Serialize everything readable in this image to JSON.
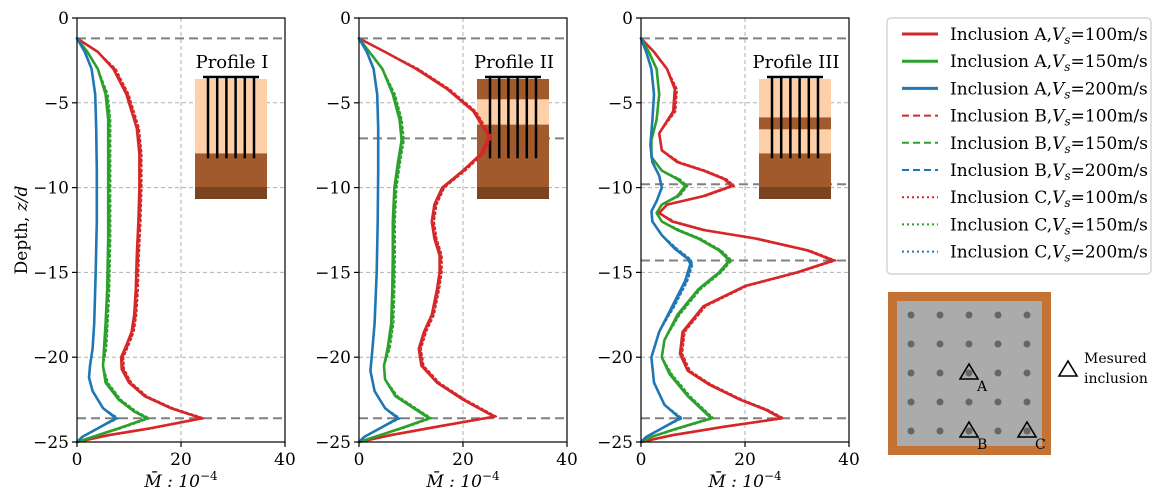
{
  "chart_data": {
    "type": "line",
    "ylabel": "Depth, z/d",
    "xlabel": "M̄ : 10",
    "xlabel_exp": "−4",
    "xlim": [
      0,
      40
    ],
    "ylim": [
      -25,
      0
    ],
    "xticks": [
      "0",
      "20",
      "40"
    ],
    "yticks": [
      "0",
      "−5",
      "−10",
      "−15",
      "−20",
      "−25"
    ],
    "grid": true,
    "legend_position": "right",
    "colors": {
      "Vs100": "#d62728",
      "Vs150": "#2ca02c",
      "Vs200": "#1f77b4"
    },
    "panels": [
      {
        "title": "Profile I",
        "layer_lines": [
          -1.2,
          -23.6
        ],
        "series": [
          {
            "name": "Inclusion A, Vs=100m/s",
            "style": "solid",
            "key": "Vs100",
            "x": [
              0,
              4,
              7,
              9.5,
              11.5,
              12,
              12,
              11.8,
              11.5,
              11.3,
              11,
              10.5,
              9.5,
              8.5,
              8.6,
              10,
              13,
              18,
              24,
              14,
              6,
              0
            ],
            "y": [
              -1.2,
              -2,
              -3,
              -4.5,
              -6.5,
              -8,
              -10,
              -12,
              -14,
              -16,
              -17.5,
              -18.5,
              -19.3,
              -20,
              -20.7,
              -21.5,
              -22.3,
              -23,
              -23.6,
              -24.2,
              -24.6,
              -25
            ]
          },
          {
            "name": "Inclusion A, Vs=150m/s",
            "style": "solid",
            "key": "Vs150",
            "x": [
              0,
              2,
              4,
              5.5,
              6,
              6,
              6,
              6,
              5.8,
              5.5,
              5.2,
              5,
              5.5,
              8,
              11,
              13.5,
              8,
              3,
              0
            ],
            "y": [
              -1.2,
              -2,
              -3,
              -4.5,
              -6,
              -8,
              -10,
              -13,
              -16,
              -18,
              -19.5,
              -20.5,
              -21.5,
              -22.5,
              -23.2,
              -23.6,
              -24.2,
              -24.7,
              -25
            ]
          },
          {
            "name": "Inclusion A, Vs=200m/s",
            "style": "solid",
            "key": "Vs200",
            "x": [
              0,
              1.5,
              2.8,
              3.5,
              3.7,
              3.8,
              3.8,
              3.6,
              3.3,
              3,
              2.5,
              2.3,
              3,
              5,
              7.5,
              4,
              1,
              0
            ],
            "y": [
              -1.2,
              -2,
              -3,
              -4.5,
              -6.5,
              -9,
              -12,
              -15,
              -18,
              -19.5,
              -20.5,
              -21.2,
              -22,
              -23,
              -23.6,
              -24.2,
              -24.7,
              -25
            ]
          }
        ]
      },
      {
        "title": "Profile II",
        "layer_lines": [
          -1.2,
          -7.1,
          -23.6
        ],
        "series": [
          {
            "name": "Inclusion A, Vs=100m/s",
            "style": "solid",
            "key": "Vs100",
            "x": [
              0,
              5,
              11,
              17,
              22,
              25,
              23.5,
              20,
              16,
              14.5,
              14,
              14.5,
              15.5,
              15.5,
              15,
              14,
              12.5,
              11.5,
              12,
              15,
              20,
              26,
              15,
              6,
              0
            ],
            "y": [
              -1.2,
              -2,
              -3,
              -4.2,
              -5.5,
              -7,
              -8,
              -9,
              -10,
              -11,
              -12,
              -13,
              -14,
              -15,
              -16,
              -17.5,
              -18.5,
              -19.5,
              -20.5,
              -21.5,
              -22.5,
              -23.5,
              -24.1,
              -24.6,
              -25
            ]
          },
          {
            "name": "Inclusion A, Vs=150m/s",
            "style": "solid",
            "key": "Vs150",
            "x": [
              0,
              2,
              4.5,
              6.5,
              7.8,
              8.2,
              7.5,
              6.8,
              6.5,
              6.5,
              6.4,
              6.2,
              5.5,
              4.8,
              5,
              7,
              10.5,
              13.5,
              8,
              3,
              0
            ],
            "y": [
              -1.2,
              -2,
              -3,
              -4.5,
              -6,
              -7.2,
              -8.5,
              -10,
              -12,
              -14,
              -16,
              -18,
              -19.5,
              -20.5,
              -21.3,
              -22.3,
              -23,
              -23.6,
              -24.2,
              -24.7,
              -25
            ]
          },
          {
            "name": "Inclusion A, Vs=200m/s",
            "style": "solid",
            "key": "Vs200",
            "x": [
              0,
              1.5,
              2.8,
              3.5,
              3.7,
              3.7,
              3.6,
              3.4,
              3,
              2.5,
              2.2,
              3,
              5,
              7.5,
              4,
              1,
              0
            ],
            "y": [
              -1.2,
              -2,
              -3,
              -4.5,
              -6.5,
              -9,
              -12,
              -15,
              -18,
              -19.8,
              -20.8,
              -22,
              -23,
              -23.6,
              -24.2,
              -24.7,
              -25
            ]
          }
        ]
      },
      {
        "title": "Profile III",
        "layer_lines": [
          -1.2,
          -9.8,
          -14.3,
          -23.6
        ],
        "series": [
          {
            "name": "Inclusion A, Vs=100m/s",
            "style": "solid",
            "key": "Vs100",
            "x": [
              0,
              2.5,
              5,
              6.5,
              6.2,
              3.5,
              4,
              7,
              12,
              16,
              17.5,
              12,
              5,
              3.5,
              6,
              12,
              22,
              32,
              37,
              30,
              20,
              12,
              8,
              7.5,
              9,
              13,
              19,
              24,
              27,
              16,
              6,
              0
            ],
            "y": [
              -1.2,
              -2,
              -3,
              -4.2,
              -5.5,
              -6.8,
              -7.8,
              -8.5,
              -9,
              -9.5,
              -9.9,
              -10.5,
              -11,
              -11.5,
              -12,
              -12.5,
              -13,
              -13.7,
              -14.3,
              -15,
              -15.8,
              -17,
              -18.5,
              -19.8,
              -20.8,
              -21.6,
              -22.5,
              -23.1,
              -23.6,
              -24.1,
              -24.6,
              -25
            ]
          },
          {
            "name": "Inclusion A, Vs=150m/s",
            "style": "solid",
            "key": "Vs150",
            "x": [
              0,
              1.5,
              3,
              3.5,
              3,
              2,
              2,
              4,
              7,
              8.5,
              7,
              4,
              3,
              4,
              7,
              11,
              15,
              17,
              15,
              11,
              7,
              4.5,
              4,
              5.5,
              9,
              13.5,
              7,
              2,
              0
            ],
            "y": [
              -1.2,
              -2,
              -3,
              -4.5,
              -6,
              -7.2,
              -8.2,
              -9,
              -9.5,
              -9.9,
              -10.5,
              -11,
              -11.5,
              -12,
              -12.5,
              -13,
              -13.7,
              -14.3,
              -15,
              -16,
              -17.5,
              -19,
              -20,
              -21,
              -22.3,
              -23.6,
              -24.2,
              -24.7,
              -25
            ]
          },
          {
            "name": "Inclusion A, Vs=200m/s",
            "style": "solid",
            "key": "Vs200",
            "x": [
              0,
              1,
              2,
              2.5,
              2.2,
              1.8,
              2.2,
              3.5,
              4,
              3,
              2,
              2.2,
              4,
              6.5,
              9,
              9.5,
              8.5,
              6,
              3.5,
              2,
              2.5,
              4.5,
              7.5,
              4,
              1,
              0
            ],
            "y": [
              -1.2,
              -2,
              -3,
              -4.5,
              -6,
              -7.5,
              -8.5,
              -9.3,
              -10,
              -10.8,
              -11.4,
              -12,
              -12.8,
              -13.6,
              -14.2,
              -14.5,
              -15.5,
              -17,
              -18.5,
              -20,
              -21.5,
              -22.8,
              -23.6,
              -24.2,
              -24.7,
              -25
            ]
          }
        ]
      }
    ],
    "legend": [
      {
        "label": "Inclusion A,",
        "vs": "V",
        "sub": "s",
        "eq": "=100m/s",
        "key": "Vs100",
        "style": "solid"
      },
      {
        "label": "Inclusion A,",
        "vs": "V",
        "sub": "s",
        "eq": "=150m/s",
        "key": "Vs150",
        "style": "solid"
      },
      {
        "label": "Inclusion A,",
        "vs": "V",
        "sub": "s",
        "eq": "=200m/s",
        "key": "Vs200",
        "style": "solid"
      },
      {
        "label": "Inclusion B,",
        "vs": "V",
        "sub": "s",
        "eq": "=100m/s",
        "key": "Vs100",
        "style": "dashed"
      },
      {
        "label": "Inclusion B,",
        "vs": "V",
        "sub": "s",
        "eq": "=150m/s",
        "key": "Vs150",
        "style": "dashed"
      },
      {
        "label": "Inclusion B,",
        "vs": "V",
        "sub": "s",
        "eq": "=200m/s",
        "key": "Vs200",
        "style": "dashed"
      },
      {
        "label": "Inclusion C,",
        "vs": "V",
        "sub": "s",
        "eq": "=100m/s",
        "key": "Vs100",
        "style": "dotted"
      },
      {
        "label": "Inclusion C,",
        "vs": "V",
        "sub": "s",
        "eq": "=150m/s",
        "key": "Vs150",
        "style": "dotted"
      },
      {
        "label": "Inclusion C,",
        "vs": "V",
        "sub": "s",
        "eq": "=200m/s",
        "key": "Vs200",
        "style": "dotted"
      }
    ],
    "plan_view": {
      "labels": [
        "A",
        "B",
        "C"
      ],
      "note_line1": "Mesured",
      "note_line2": "inclusion"
    }
  }
}
